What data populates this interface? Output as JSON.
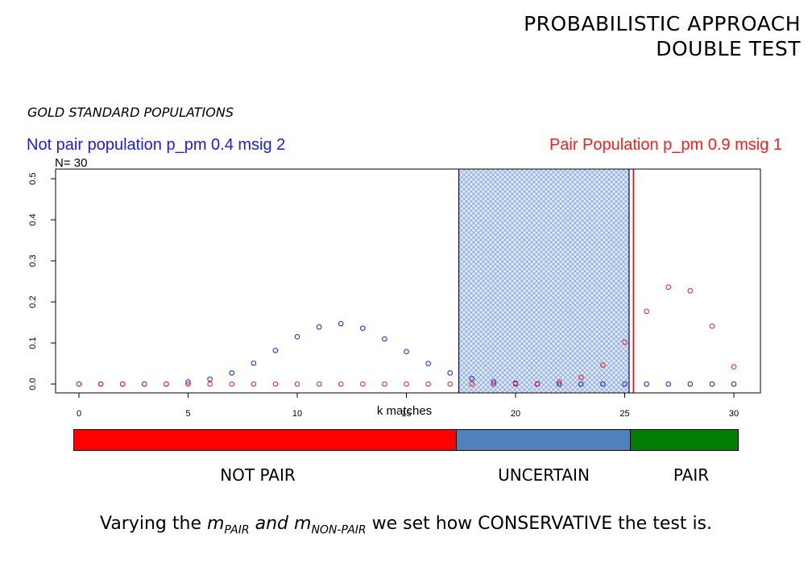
{
  "title": {
    "line1": "PROBABILISTIC APPROACH",
    "line2": "DOUBLE TEST"
  },
  "gold_label": "GOLD STANDARD POPULATIONS",
  "legend": {
    "not_pair": "Not pair population p_pm 0.4 msig 2",
    "pair": "Pair Population p_pm 0.9 msig 1"
  },
  "colors": {
    "blue": "#1a1aff",
    "red": "#ff1a1a",
    "bar_red": "#ff0000",
    "bar_blue": "#4f81bd",
    "bar_green": "#007f00"
  },
  "chart_data": {
    "type": "scatter",
    "n_label": "N= 30",
    "xlabel": "k matches",
    "ylabel": "",
    "xlim": [
      0,
      30
    ],
    "ylim": [
      0,
      0.5
    ],
    "x_ticks": [
      0,
      5,
      10,
      15,
      20,
      25,
      30
    ],
    "y_ticks": [
      "0.0",
      "0.1",
      "0.2",
      "0.3",
      "0.4",
      "0.5"
    ],
    "uncertain_region": [
      17.4,
      25.2
    ],
    "pair_threshold": 25.4,
    "series": [
      {
        "name": "Not pair population p_pm 0.4 msig 2",
        "color": "#1a1aff",
        "x": [
          0,
          1,
          2,
          3,
          4,
          5,
          6,
          7,
          8,
          9,
          10,
          11,
          12,
          13,
          14,
          15,
          16,
          17,
          18,
          19,
          20,
          21,
          22,
          23,
          24,
          25,
          26,
          27,
          28,
          29,
          30
        ],
        "y": [
          0,
          0,
          0,
          0,
          0,
          0.005,
          0.012,
          0.027,
          0.051,
          0.082,
          0.115,
          0.139,
          0.147,
          0.136,
          0.11,
          0.079,
          0.05,
          0.027,
          0.013,
          0.005,
          0.002,
          0,
          0,
          0,
          0,
          0,
          0,
          0,
          0,
          0,
          0
        ]
      },
      {
        "name": "Pair Population p_pm 0.9 msig 1",
        "color": "#ff1a1a",
        "x": [
          0,
          1,
          2,
          3,
          4,
          5,
          6,
          7,
          8,
          9,
          10,
          11,
          12,
          13,
          14,
          15,
          16,
          17,
          18,
          19,
          20,
          21,
          22,
          23,
          24,
          25,
          26,
          27,
          28,
          29,
          30
        ],
        "y": [
          0,
          0,
          0,
          0,
          0,
          0,
          0,
          0,
          0,
          0,
          0,
          0,
          0,
          0,
          0,
          0,
          0,
          0,
          0,
          0,
          0,
          0.001,
          0.005,
          0.016,
          0.046,
          0.102,
          0.177,
          0.236,
          0.227,
          0.141,
          0.042
        ]
      }
    ]
  },
  "bands": {
    "not_pair": "NOT PAIR",
    "uncertain": "UNCERTAIN",
    "pair": "PAIR"
  },
  "footer": {
    "pre": "Varying the ",
    "m1": "m",
    "sub1": "PAIR",
    "and": " and ",
    "m2": "m",
    "sub2": "NON-PAIR",
    "post": " we set how CONSERVATIVE the test is."
  }
}
